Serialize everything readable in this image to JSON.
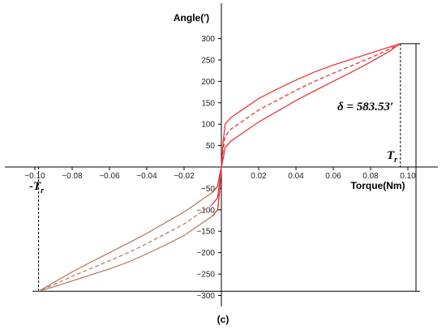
{
  "chart_data": {
    "type": "line",
    "xlabel": "Torque(Nm)",
    "ylabel": "Angle(′)",
    "xlim": [
      -0.1,
      0.1
    ],
    "ylim": [
      -300,
      300
    ],
    "x_ticks": [
      -0.1,
      -0.08,
      -0.06,
      -0.04,
      -0.02,
      0.02,
      0.04,
      0.06,
      0.08,
      0.1
    ],
    "x_tick_labels": [
      "−0.10",
      "−0.08",
      "−0.06",
      "−0.04",
      "−0.02",
      "0.02",
      "0.04",
      "0.06",
      "0.08",
      "0.10"
    ],
    "y_ticks": [
      -300,
      -250,
      -200,
      -150,
      -100,
      -50,
      50,
      100,
      150,
      200,
      250,
      300
    ],
    "y_tick_labels": [
      "−300",
      "−250",
      "−200",
      "−150",
      "−100",
      "−50",
      "50",
      "100",
      "150",
      "200",
      "250",
      "300"
    ],
    "grid": false,
    "colors": {
      "loop": "#e8383d",
      "loop_negative": "#b5806a",
      "axis": "#000000",
      "guide": "#000000"
    },
    "series": [
      {
        "style": "solid",
        "x": [
          0,
          0.001,
          0.002,
          0.005,
          0.01,
          0.02,
          0.03,
          0.04,
          0.05,
          0.06,
          0.07,
          0.08,
          0.09,
          0.096
        ],
        "y": [
          0,
          60,
          100,
          115,
          130,
          160,
          182,
          203,
          222,
          238,
          252,
          266,
          280,
          288
        ]
      },
      {
        "style": "solid",
        "x": [
          0,
          0.001,
          0.002,
          0.005,
          0.01,
          0.02,
          0.03,
          0.04,
          0.05,
          0.06,
          0.07,
          0.08,
          0.09,
          0.096
        ],
        "y": [
          0,
          20,
          45,
          60,
          75,
          105,
          130,
          155,
          178,
          200,
          222,
          245,
          270,
          288
        ]
      },
      {
        "style": "dashed",
        "x": [
          0,
          0.001,
          0.002,
          0.005,
          0.01,
          0.02,
          0.03,
          0.04,
          0.05,
          0.06,
          0.07,
          0.08,
          0.09,
          0.096
        ],
        "y": [
          0,
          40,
          72,
          88,
          103,
          133,
          156,
          179,
          200,
          219,
          237,
          255,
          275,
          288
        ]
      },
      {
        "style": "solid",
        "x": [
          0,
          -0.001,
          -0.002,
          -0.005,
          -0.01,
          -0.02,
          -0.03,
          -0.04,
          -0.05,
          -0.06,
          -0.07,
          -0.08,
          -0.09,
          -0.098
        ],
        "y": [
          0,
          -60,
          -100,
          -115,
          -130,
          -160,
          -182,
          -203,
          -222,
          -238,
          -252,
          -266,
          -280,
          -290
        ]
      },
      {
        "style": "solid",
        "x": [
          0,
          -0.001,
          -0.002,
          -0.005,
          -0.01,
          -0.02,
          -0.03,
          -0.04,
          -0.05,
          -0.06,
          -0.07,
          -0.08,
          -0.09,
          -0.098
        ],
        "y": [
          0,
          -20,
          -45,
          -60,
          -75,
          -105,
          -130,
          -155,
          -178,
          -200,
          -222,
          -245,
          -270,
          -290
        ]
      },
      {
        "style": "dashed",
        "x": [
          0,
          -0.001,
          -0.002,
          -0.005,
          -0.01,
          -0.02,
          -0.03,
          -0.04,
          -0.05,
          -0.06,
          -0.07,
          -0.08,
          -0.09,
          -0.098
        ],
        "y": [
          0,
          -40,
          -72,
          -88,
          -103,
          -133,
          -156,
          -179,
          -200,
          -219,
          -237,
          -255,
          -275,
          -290
        ]
      }
    ],
    "annotations": {
      "delta_label": "δ = 583.53′",
      "tr_pos_main": "T",
      "tr_pos_sub": "r",
      "tr_neg_main": "-T",
      "tr_neg_sub": "r",
      "tr_pos_x": 0.096,
      "tr_neg_x": -0.098,
      "delta_top_y": 288,
      "delta_bottom_y": -290
    }
  },
  "caption": "(c)"
}
